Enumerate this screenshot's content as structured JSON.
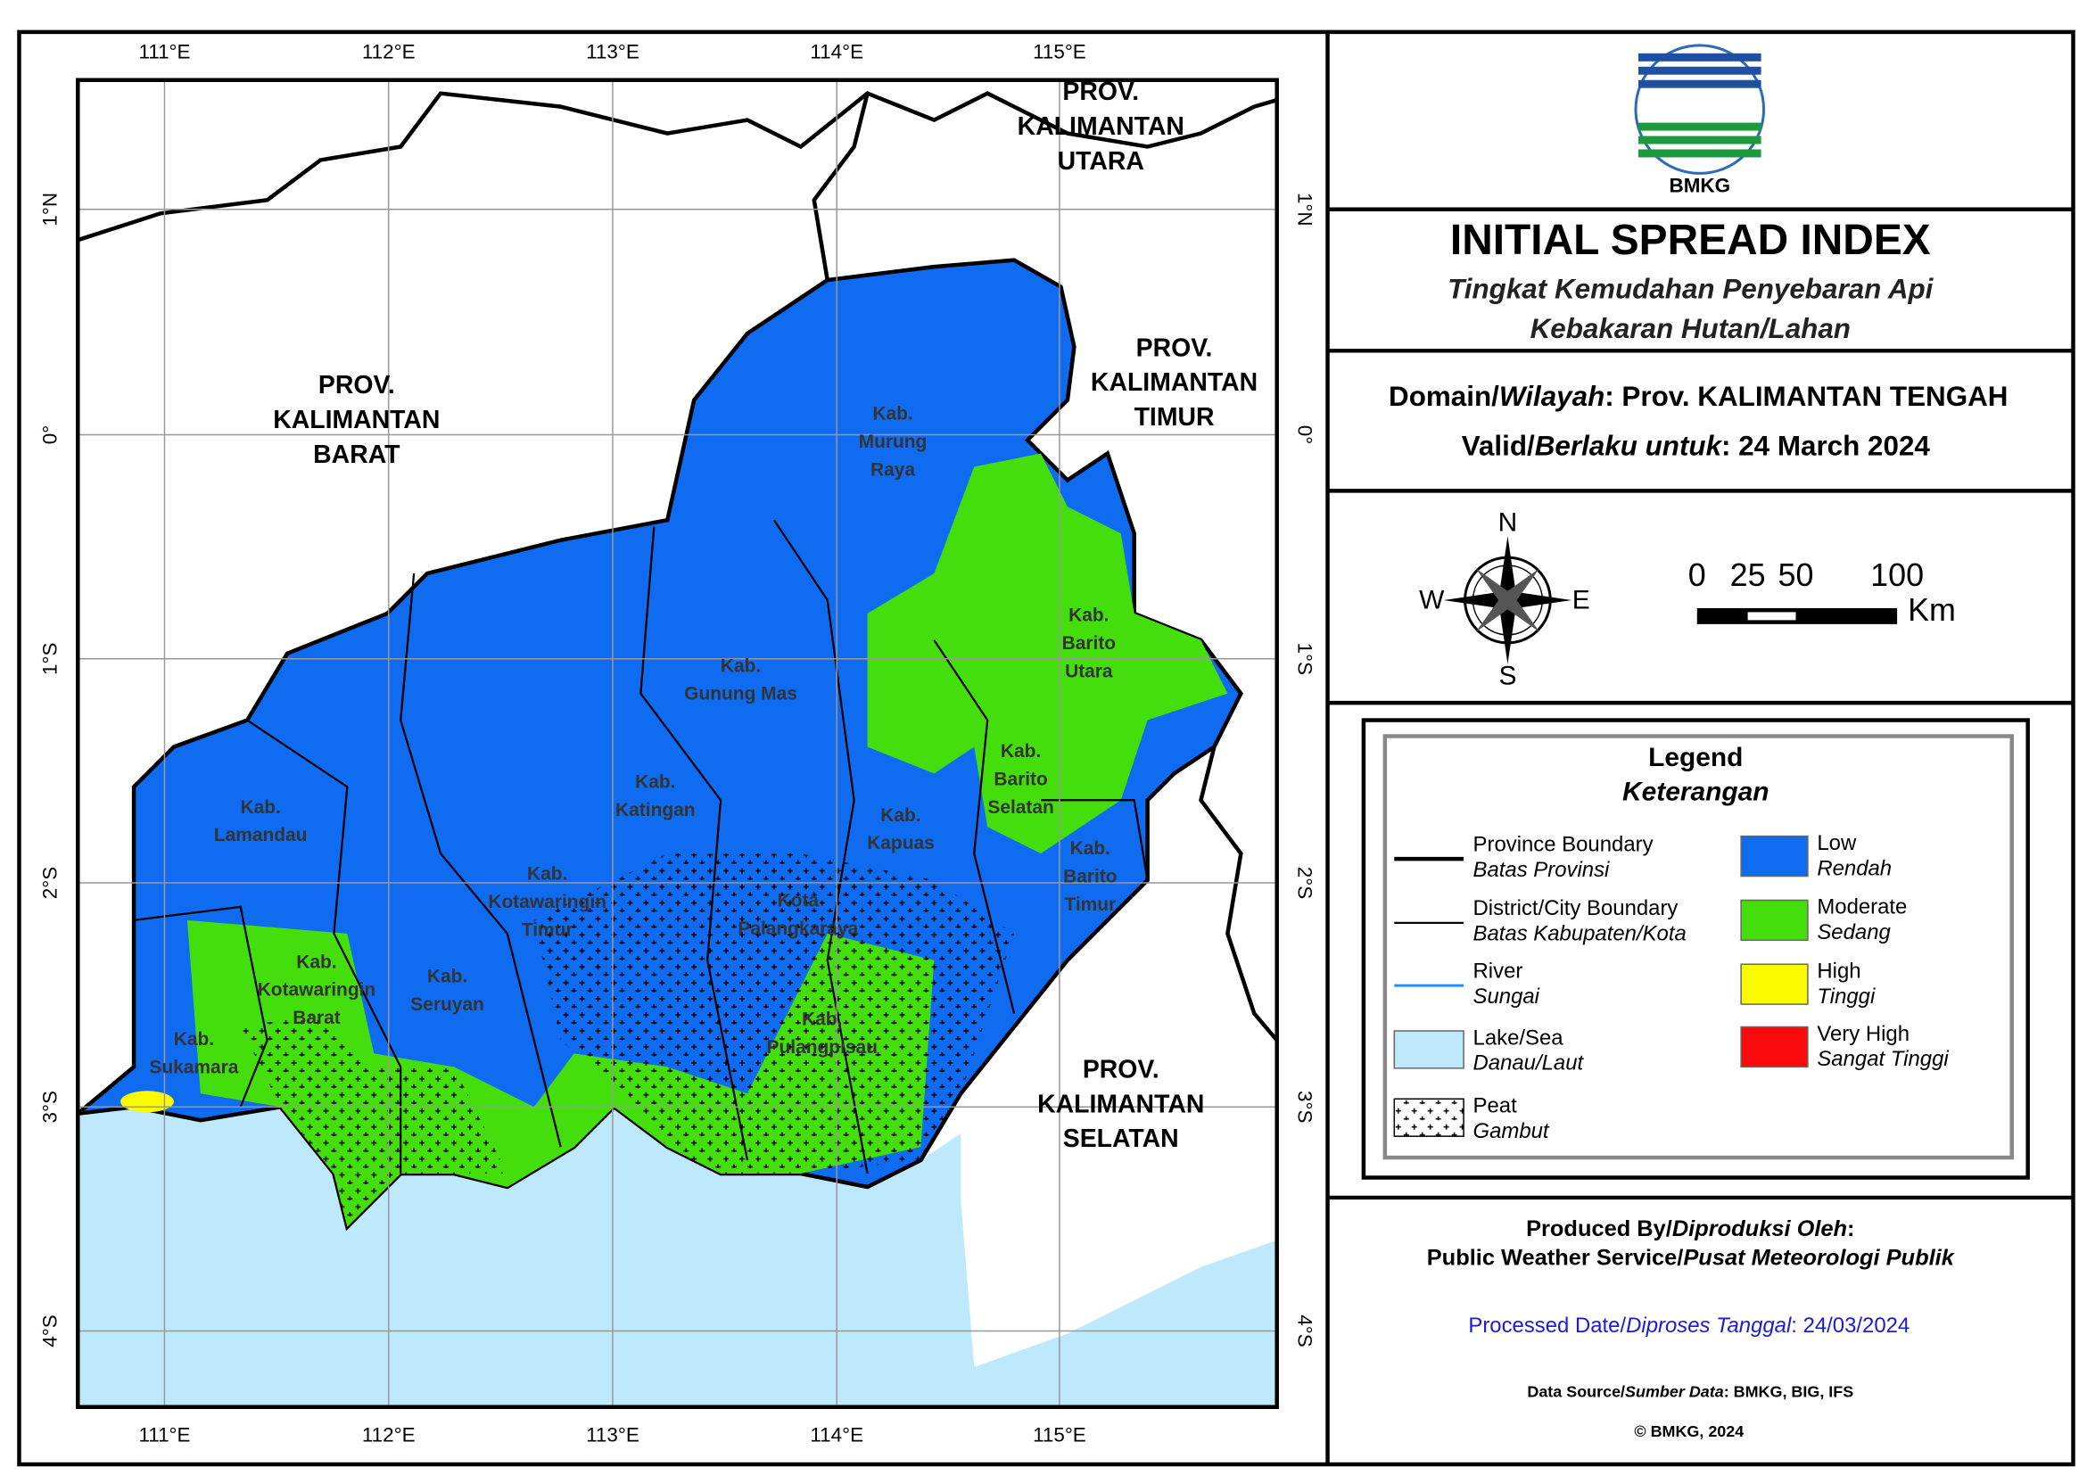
{
  "map": {
    "lon_labels": [
      "111°E",
      "112°E",
      "113°E",
      "114°E",
      "115°E"
    ],
    "lat_labels": [
      "1°N",
      "0°",
      "1°S",
      "2°S",
      "3°S",
      "4°S"
    ],
    "province_labels": [
      {
        "lines": [
          "PROV.",
          "KALIMANTAN",
          "BARAT"
        ]
      },
      {
        "lines": [
          "PROV.",
          "KALIMANTAN",
          "UTARA"
        ]
      },
      {
        "lines": [
          "PROV.",
          "KALIMANTAN",
          "TIMUR"
        ]
      },
      {
        "lines": [
          "PROV.",
          "KALIMANTAN",
          "SELATAN"
        ]
      }
    ],
    "district_labels": [
      {
        "lines": [
          "Kab.",
          "Murung",
          "Raya"
        ]
      },
      {
        "lines": [
          "Kab.",
          "Barito",
          "Utara"
        ]
      },
      {
        "lines": [
          "Kab.",
          "Gunung Mas"
        ]
      },
      {
        "lines": [
          "Kab.",
          "Katingan"
        ]
      },
      {
        "lines": [
          "Kab.",
          "Barito",
          "Selatan"
        ]
      },
      {
        "lines": [
          "Kab.",
          "Kapuas"
        ]
      },
      {
        "lines": [
          "Kab.",
          "Barito",
          "Timur"
        ]
      },
      {
        "lines": [
          "Kab.",
          "Lamandau"
        ]
      },
      {
        "lines": [
          "Kab.",
          "Kotawaringin",
          "Timur"
        ]
      },
      {
        "lines": [
          "Kota",
          "Palangkaraya"
        ]
      },
      {
        "lines": [
          "Kab.",
          "Kotawaringin",
          "Barat"
        ]
      },
      {
        "lines": [
          "Kab.",
          "Seruyan"
        ]
      },
      {
        "lines": [
          "Kab.",
          "Pulangpisau"
        ]
      },
      {
        "lines": [
          "Kab.",
          "Sukamara"
        ]
      }
    ]
  },
  "logo": "BMKG",
  "title": {
    "heading": "INITIAL SPREAD INDEX",
    "subtitle": [
      "Tingkat Kemudahan Penyebaran Api",
      "Kebakaran Hutan/Lahan"
    ]
  },
  "info": {
    "domain": {
      "label": "Domain/",
      "label_id": "Wilayah",
      "value": ": Prov. KALIMANTAN TENGAH"
    },
    "valid": {
      "label": "Valid/",
      "label_id": "Berlaku untuk",
      "value": ": 24 March 2024"
    }
  },
  "compass": {
    "north": "N",
    "south": "S",
    "east": "E",
    "west": "W"
  },
  "scale_bar": {
    "ticks": [
      0,
      25,
      50,
      100
    ],
    "unit": "Km"
  },
  "legend": {
    "title": "Legend",
    "subtitle": "Keterangan",
    "items": [
      {
        "label": "Province Boundary",
        "label_id": "Batas Provinsi"
      },
      {
        "label": "District/City Boundary",
        "label_id": "Batas Kabupaten/Kota"
      },
      {
        "label": "River",
        "label_id": "Sungai"
      },
      {
        "label": "Lake/Sea",
        "label_id": "Danau/Laut"
      },
      {
        "label": "Peat",
        "label_id": "Gambut"
      },
      {
        "label": "Low",
        "label_id": "Rendah",
        "color": "#0f6bf0"
      },
      {
        "label": "Moderate",
        "label_id": "Sedang",
        "color": "#45de0d"
      },
      {
        "label": "High",
        "label_id": "Tinggi",
        "color": "#fafa00"
      },
      {
        "label": "Very High",
        "label_id": "Sangat Tinggi",
        "color": "#fa0a0a"
      }
    ]
  },
  "credits": {
    "produced": {
      "label": "Produced By/",
      "label_id": "Diproduksi Oleh",
      "tail": ":"
    },
    "producer": {
      "label": "Public Weather Service/",
      "label_id": "Pusat Meteorologi Publik"
    },
    "processed": {
      "label": "Processed Date/",
      "label_id": "Diproses Tanggal",
      "value": ": 24/03/2024"
    },
    "source": {
      "label": "Data Source/",
      "label_id": "Sumber Data",
      "value": ": BMKG, BIG, IFS"
    },
    "copyright": "© BMKG, 2024"
  }
}
